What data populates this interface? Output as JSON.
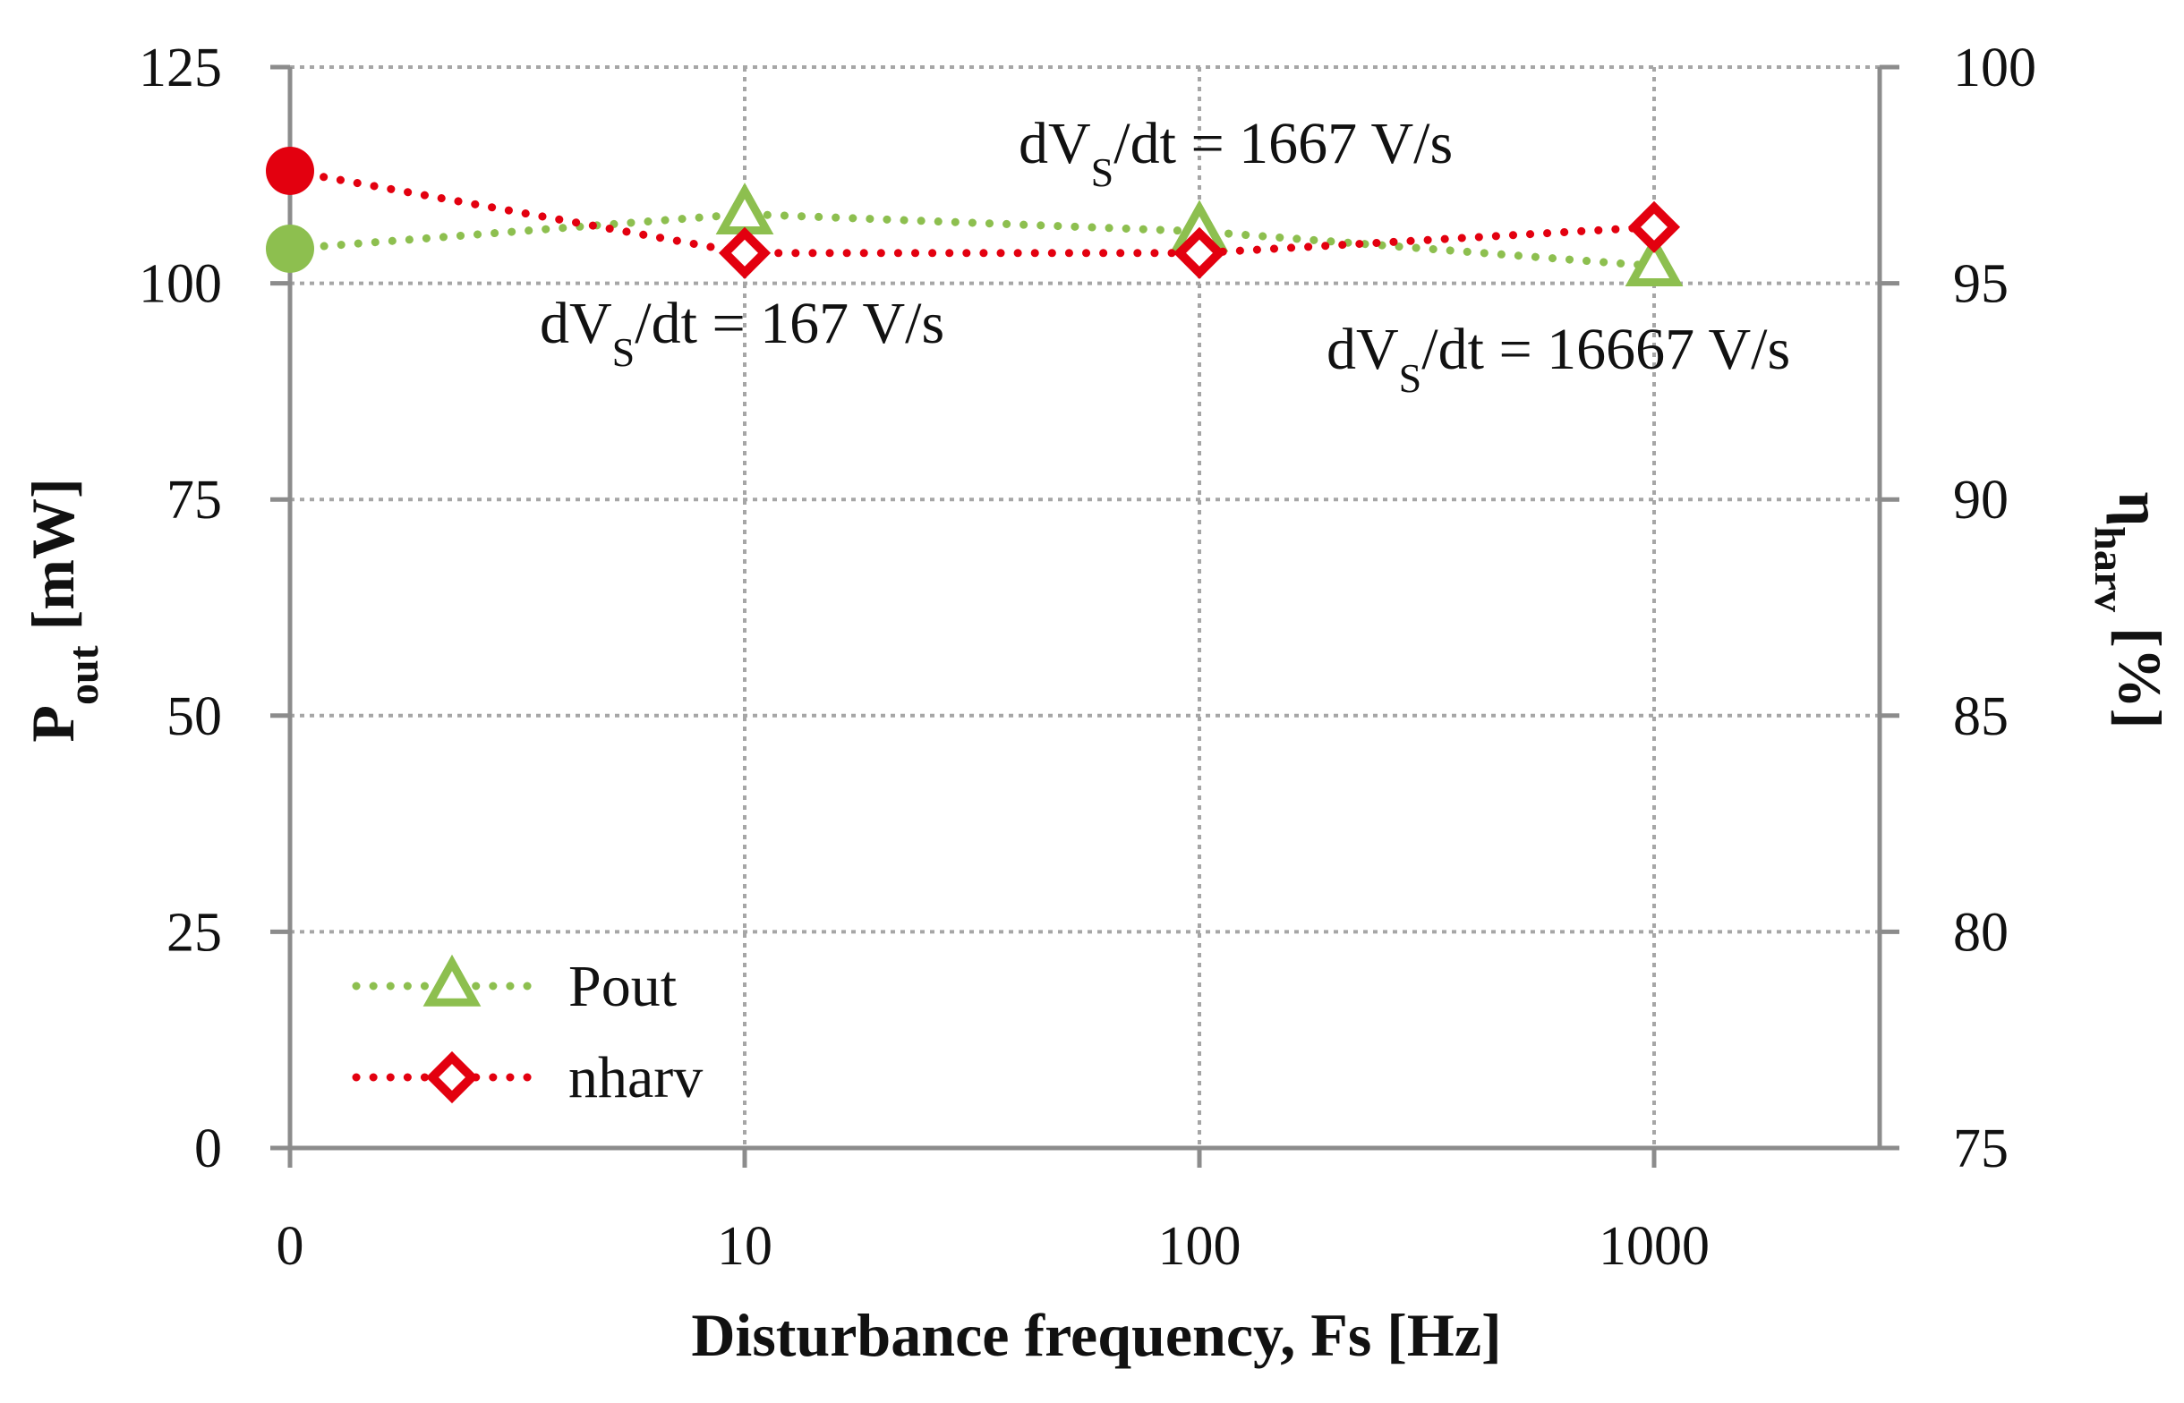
{
  "chart_data": {
    "type": "line",
    "xlabel": "Disturbance frequency, Fs [Hz]",
    "ylabel_left": {
      "main": "P",
      "sub": "out",
      "rest": " [mW]"
    },
    "ylabel_right": {
      "main": "η",
      "sub": "harv",
      "rest": " [%]"
    },
    "categories": [
      "0",
      "10",
      "100",
      "1000"
    ],
    "yleft": {
      "lim": [
        0,
        125
      ],
      "ticks": [
        0,
        25,
        50,
        75,
        100,
        125
      ]
    },
    "yright": {
      "lim": [
        75,
        100
      ],
      "ticks": [
        75,
        80,
        85,
        90,
        95,
        100
      ]
    },
    "grid": true,
    "series": [
      {
        "name": "Pout",
        "axis": "left",
        "color": "#8DBF4F",
        "marker": "triangle",
        "first_marker": "circle",
        "values": [
          104,
          108,
          106,
          102
        ]
      },
      {
        "name": "nharv",
        "axis": "right",
        "color": "#E3000F",
        "marker": "diamond",
        "first_marker": "circle",
        "values": [
          97.6,
          95.7,
          95.7,
          96.3
        ]
      }
    ],
    "annotations": [
      {
        "prefix": "dV",
        "sub": "S",
        "suffix": "/dt = 167 V/s"
      },
      {
        "prefix": "dV",
        "sub": "S",
        "suffix": "/dt = 1667 V/s"
      },
      {
        "prefix": "dV",
        "sub": "S",
        "suffix": "/dt = 16667 V/s"
      }
    ],
    "legend_position": "bottom-left"
  }
}
